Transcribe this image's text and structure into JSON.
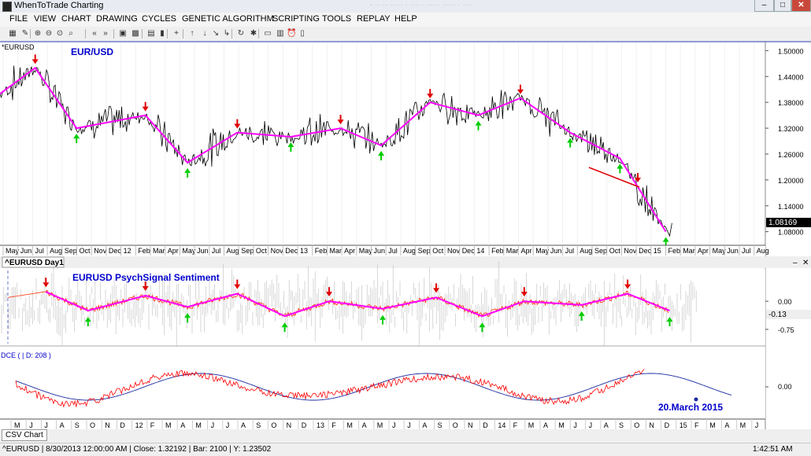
{
  "window": {
    "title": "WhenToTrade Charting",
    "blurred_caption": "- ·· ·· ····· · ···· · ····· ····· · ····"
  },
  "menu": [
    "FILE",
    "VIEW",
    "CHART",
    "DRAWING",
    "CYCLES",
    "GENETIC ALGORITHM",
    "SCRIPTING",
    "TOOLS",
    "REPLAY",
    "HELP"
  ],
  "toolbar_icons": [
    "grid-icon",
    "wrench-icon",
    "zoom-in-icon",
    "zoom-out-icon",
    "zoom-fit-icon",
    "zoom-reset-icon",
    "rewind-icon",
    "forward-icon",
    "cycle-scan-icon",
    "cycle-detect-icon",
    "spectrum-icon",
    "battery-icon",
    "crosshair-icon",
    "arrow-up-icon",
    "arrow-down-icon",
    "arrow-diagonal-icon",
    "pencil-icon",
    "refresh-icon",
    "bug-icon",
    "panel-icon",
    "camera-icon",
    "alarm-icon",
    "print-icon"
  ],
  "price_panel": {
    "symbol_label": "*EURUSD",
    "chart_title": "EUR/USD",
    "last_price": "1.08169",
    "y_ticks": [
      "1.50000",
      "1.44000",
      "1.38000",
      "1.32000",
      "1.26000",
      "1.20000",
      "1.14000",
      "1.08000"
    ],
    "y_tick_values": [
      1.5,
      1.44,
      1.38,
      1.32,
      1.26,
      1.2,
      1.14,
      1.08
    ],
    "x_labels": [
      "May",
      "Jun",
      "Jul",
      "Aug",
      "Sep",
      "Oct",
      "Nov",
      "Dec",
      "12",
      "Feb",
      "Mar",
      "Apr",
      "May",
      "Jun",
      "Jul",
      "Aug",
      "Sep",
      "Oct",
      "Nov",
      "Dec",
      "13",
      "Feb",
      "Mar",
      "Apr",
      "May",
      "Jun",
      "Jul",
      "Aug",
      "Sep",
      "Oct",
      "Nov",
      "Dec",
      "14",
      "Feb",
      "Mar",
      "Apr",
      "May",
      "Jun",
      "Jul",
      "Aug",
      "Sep",
      "Oct",
      "Nov",
      "Dec",
      "15",
      "Feb",
      "Mar",
      "Apr",
      "May",
      "Jun",
      "Jul",
      "Aug"
    ]
  },
  "tab_label": "^EURUSD Day1",
  "sentiment_panel": {
    "title": "EURUSD PsychSignal Sentiment",
    "y_ticks": [
      "0.00",
      "-0.75"
    ],
    "y_tick_values": [
      0.0,
      -0.75
    ],
    "last_value": "-0.13"
  },
  "cycle_panel": {
    "label": "DCE ( | D: 208 )",
    "annotation": "20.March 2015",
    "y_tick": "0.00",
    "x_labels": [
      "M",
      "J",
      "J",
      "A",
      "S",
      "O",
      "N",
      "D",
      "12",
      "F",
      "M",
      "A",
      "M",
      "J",
      "J",
      "A",
      "S",
      "O",
      "N",
      "D",
      "13",
      "F",
      "M",
      "A",
      "M",
      "J",
      "J",
      "A",
      "S",
      "O",
      "N",
      "D",
      "14",
      "F",
      "M",
      "A",
      "M",
      "J",
      "J",
      "A",
      "S",
      "O",
      "N",
      "D",
      "15",
      "F",
      "M",
      "A",
      "M",
      "J"
    ]
  },
  "csv_tab": "CSV Chart",
  "status": {
    "text": "^EURUSD | 8/30/2013 12:00:00 AM | Close: 1.32192 | Bar: 2100 | Y: 1.23502",
    "time": "1:42:51 AM"
  },
  "colors": {
    "price": "#000000",
    "zigzag": "#ff00ff",
    "down_arrow": "#e00000",
    "up_arrow": "#00cc00",
    "trend": "#dd0000",
    "title": "#0000cc",
    "sentiment_line": "#ff2a00",
    "sentiment_noise": "#bbbbbb",
    "cycle_sine": "#1a2aa0",
    "cycle_price": "#ff0000"
  },
  "chart_data": [
    {
      "type": "line",
      "title": "EUR/USD",
      "ylim": [
        1.06,
        1.52
      ],
      "series": [
        {
          "name": "EUR/USD",
          "x_end": [
            "Apr 2011",
            "Jul 2011",
            "Oct 2011",
            "Feb 2012",
            "Jun 2012",
            "Sep 2012",
            "Jan 2013",
            "Apr 2013",
            "Jul 2013",
            "Oct 2013",
            "Feb 2014",
            "May 2014",
            "Aug 2014",
            "Dec 2014",
            "Mar 2015"
          ],
          "values": [
            1.4,
            1.46,
            1.32,
            1.35,
            1.24,
            1.31,
            1.3,
            1.32,
            1.28,
            1.38,
            1.35,
            1.39,
            1.31,
            1.25,
            1.08
          ]
        }
      ],
      "zigzag_pivots": [
        [
          0.0,
          1.4
        ],
        [
          0.046,
          1.46
        ],
        [
          0.1,
          1.32
        ],
        [
          0.19,
          1.35
        ],
        [
          0.245,
          1.24
        ],
        [
          0.31,
          1.31
        ],
        [
          0.38,
          1.3
        ],
        [
          0.445,
          1.32
        ],
        [
          0.498,
          1.28
        ],
        [
          0.562,
          1.38
        ],
        [
          0.625,
          1.35
        ],
        [
          0.68,
          1.39
        ],
        [
          0.745,
          1.31
        ],
        [
          0.81,
          1.25
        ],
        [
          0.87,
          1.08
        ]
      ]
    },
    {
      "type": "line",
      "title": "EURUSD PsychSignal Sentiment",
      "ylim": [
        -1.1,
        0.8
      ],
      "series": [
        {
          "name": "EURUSD PsychSignal Sentiment",
          "zigzag": [
            [
              0.06,
              0.25
            ],
            [
              0.115,
              -0.25
            ],
            [
              0.19,
              0.15
            ],
            [
              0.245,
              -0.15
            ],
            [
              0.31,
              0.2
            ],
            [
              0.372,
              -0.4
            ],
            [
              0.43,
              0.0
            ],
            [
              0.5,
              -0.2
            ],
            [
              0.57,
              0.1
            ],
            [
              0.63,
              -0.4
            ],
            [
              0.685,
              0.0
            ],
            [
              0.76,
              -0.1
            ],
            [
              0.82,
              0.2
            ],
            [
              0.875,
              -0.25
            ]
          ]
        }
      ]
    },
    {
      "type": "line",
      "title": "DCE",
      "series": [
        {
          "name": "DCE",
          "cycle_length_days": 208
        }
      ]
    }
  ]
}
